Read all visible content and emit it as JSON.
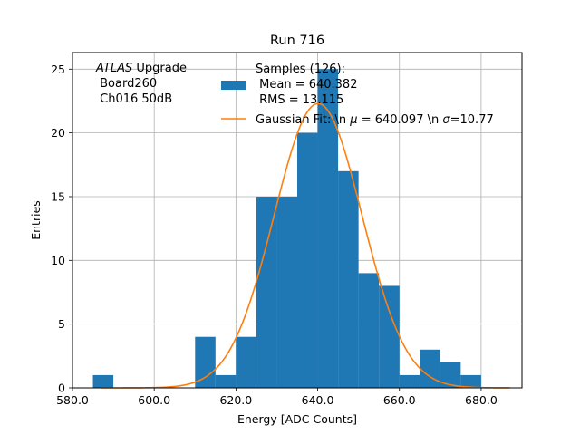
{
  "chart_data": {
    "type": "bar",
    "title": "Run 716",
    "xlabel": "Energy [ADC Counts]",
    "ylabel": "Entries",
    "xlim": [
      580,
      690
    ],
    "ylim": [
      0,
      26.3
    ],
    "grid": true,
    "xticks": [
      580.0,
      600.0,
      620.0,
      640.0,
      660.0,
      680.0
    ],
    "xtick_labels": [
      "580.0",
      "600.0",
      "620.0",
      "640.0",
      "660.0",
      "680.0"
    ],
    "yticks": [
      0,
      5,
      10,
      15,
      20,
      25
    ],
    "ytick_labels": [
      "0",
      "5",
      "10",
      "15",
      "20",
      "25"
    ],
    "annotation": {
      "italic": "ATLAS",
      "suffix": " Upgrade",
      "line2": " Board260",
      "line3": " Ch016 50dB"
    },
    "legend": {
      "placement": "top-right",
      "hist_label_lines": [
        "Samples (126):",
        " Mean = 640.382",
        " RMS = 13.115"
      ],
      "fit_label_prefix": "Gaussian Fit: \\n ",
      "fit_label_mid": " = 640.097 \\n ",
      "fit_label_suffix": "=10.77",
      "mu_symbol": "μ",
      "sigma_symbol": "σ"
    },
    "series": [
      {
        "name": "Samples (126)",
        "kind": "histogram",
        "color": "#1f77b4",
        "bin_width": 5,
        "bin_starts": [
          585,
          590,
          595,
          600,
          605,
          610,
          615,
          620,
          625,
          630,
          635,
          640,
          645,
          650,
          655,
          660,
          665,
          670,
          675
        ],
        "values": [
          1,
          0,
          0,
          0,
          0,
          4,
          1,
          4,
          15,
          15,
          20,
          25,
          17,
          9,
          8,
          1,
          3,
          2,
          1
        ]
      },
      {
        "name": "Gaussian Fit",
        "kind": "line",
        "color": "#ff7f0e",
        "mu": 640.097,
        "sigma": 10.77,
        "amplitude": 22.3,
        "x_range": [
          587,
          687
        ]
      }
    ]
  }
}
